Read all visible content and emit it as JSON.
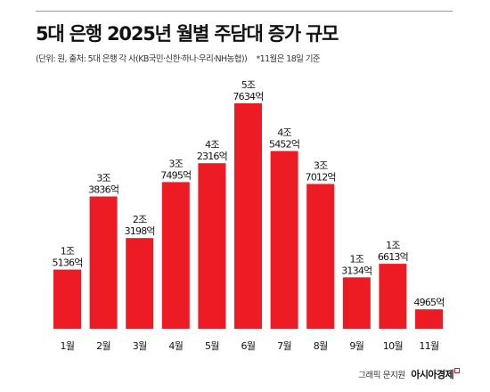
{
  "header": {
    "title": "5대 은행 2025년 월별 주담대 증가 규모",
    "source": "(단위: 원, 출처: 5대 은행 각 사(KB국민·신한·하나·우리·NH농협))",
    "note": "*11월은 18일 기준"
  },
  "credit": {
    "graphic": "그래픽 문지원",
    "brand": "아시아경제"
  },
  "colors": {
    "bar": "#ed1c24",
    "accent": "#d9161d"
  },
  "chart_data": {
    "type": "bar",
    "categories": [
      "1월",
      "2월",
      "3월",
      "4월",
      "5월",
      "6월",
      "7월",
      "8월",
      "9월",
      "10월",
      "11월"
    ],
    "values": [
      1.5136,
      3.3836,
      2.3198,
      3.7495,
      4.2316,
      5.7634,
      4.5452,
      3.7012,
      1.3134,
      1.6613,
      0.4965
    ],
    "value_unit": "조 원",
    "data_labels": [
      [
        "1조",
        "5136억"
      ],
      [
        "3조",
        "3836억"
      ],
      [
        "2조",
        "3198억"
      ],
      [
        "3조",
        "7495억"
      ],
      [
        "4조",
        "2316억"
      ],
      [
        "5조",
        "7634억"
      ],
      [
        "4조",
        "5452억"
      ],
      [
        "3조",
        "7012억"
      ],
      [
        "1조",
        "3134억"
      ],
      [
        "1조",
        "6613억"
      ],
      [
        "4965억"
      ]
    ],
    "grid": false,
    "legend": "none"
  }
}
